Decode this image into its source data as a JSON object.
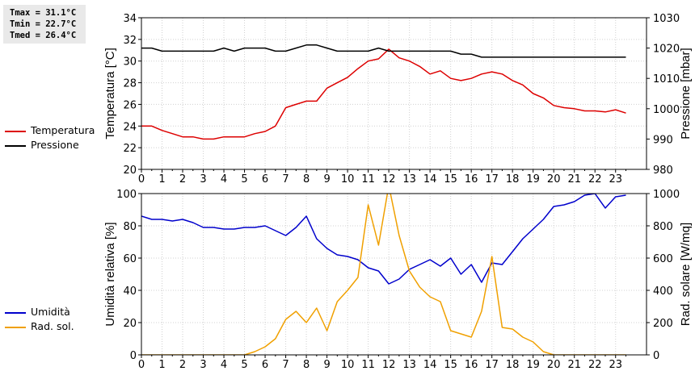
{
  "stats": {
    "tmax": "Tmax = 31.1°C",
    "tmin": "Tmin = 22.7°C",
    "tmed": "Tmed = 26.4°C"
  },
  "chart_data": [
    {
      "type": "line",
      "x_ticks": [
        "0",
        "1",
        "2",
        "3",
        "4",
        "5",
        "6",
        "7",
        "8",
        "9",
        "10",
        "11",
        "12",
        "13",
        "14",
        "15",
        "16",
        "17",
        "18",
        "19",
        "20",
        "21",
        "22",
        "23"
      ],
      "xlim": [
        0,
        24.5
      ],
      "y_left": {
        "label": "Temperatura [°C]",
        "lim": [
          20,
          34
        ],
        "ticks": [
          "20",
          "22",
          "24",
          "26",
          "28",
          "30",
          "32",
          "34"
        ]
      },
      "y_right": {
        "label": "Pressione [mbar]",
        "lim": [
          980,
          1030
        ],
        "ticks": [
          "980",
          "990",
          "1000",
          "1010",
          "1020",
          "1030"
        ]
      },
      "grid": true,
      "legend_position": "left",
      "series": [
        {
          "name": "Temperatura",
          "axis": "left",
          "color": "#dd0000",
          "x": [
            0,
            0.5,
            1,
            1.5,
            2,
            2.5,
            3,
            3.5,
            4,
            4.5,
            5,
            5.5,
            6,
            6.5,
            7,
            7.5,
            8,
            8.5,
            9,
            9.5,
            10,
            10.5,
            11,
            11.5,
            12,
            12.5,
            13,
            13.5,
            14,
            14.5,
            15,
            15.5,
            16,
            16.5,
            17,
            17.5,
            18,
            18.5,
            19,
            19.5,
            20,
            20.5,
            21,
            21.5,
            22,
            22.5,
            23,
            23.5
          ],
          "y": [
            24.0,
            24.0,
            23.6,
            23.3,
            23.0,
            23.0,
            22.8,
            22.8,
            23.0,
            23.0,
            23.0,
            23.3,
            23.5,
            24.0,
            25.7,
            26.0,
            26.3,
            26.3,
            27.5,
            28.0,
            28.5,
            29.3,
            30.0,
            30.2,
            31.1,
            30.3,
            30.0,
            29.5,
            28.8,
            29.1,
            28.4,
            28.2,
            28.4,
            28.8,
            29.0,
            28.8,
            28.2,
            27.8,
            27.0,
            26.6,
            25.9,
            25.7,
            25.6,
            25.4,
            25.4,
            25.3,
            25.5,
            25.2
          ]
        },
        {
          "name": "Pressione",
          "axis": "right",
          "color": "#000000",
          "x": [
            0,
            0.5,
            1,
            1.5,
            2,
            2.5,
            3,
            3.5,
            4,
            4.5,
            5,
            5.5,
            6,
            6.5,
            7,
            7.5,
            8,
            8.5,
            9,
            9.5,
            10,
            10.5,
            11,
            11.5,
            12,
            12.5,
            13,
            13.5,
            14,
            14.5,
            15,
            15.5,
            16,
            16.5,
            17,
            17.5,
            18,
            18.5,
            19,
            19.5,
            20,
            20.5,
            21,
            21.5,
            22,
            22.5,
            23,
            23.5
          ],
          "y": [
            1020,
            1020,
            1019,
            1019,
            1019,
            1019,
            1019,
            1019,
            1020,
            1019,
            1020,
            1020,
            1020,
            1019,
            1019,
            1020,
            1021,
            1021,
            1020,
            1019,
            1019,
            1019,
            1019,
            1020,
            1019,
            1019,
            1019,
            1019,
            1019,
            1019,
            1019,
            1018,
            1018,
            1017,
            1017,
            1017,
            1017,
            1017,
            1017,
            1017,
            1017,
            1017,
            1017,
            1017,
            1017,
            1017,
            1017,
            1017
          ]
        }
      ]
    },
    {
      "type": "line",
      "x_ticks": [
        "0",
        "1",
        "2",
        "3",
        "4",
        "5",
        "6",
        "7",
        "8",
        "9",
        "10",
        "11",
        "12",
        "13",
        "14",
        "15",
        "16",
        "17",
        "18",
        "19",
        "20",
        "21",
        "22",
        "23"
      ],
      "xlim": [
        0,
        24.5
      ],
      "y_left": {
        "label": "Umidità relativa [%]",
        "lim": [
          0,
          100
        ],
        "ticks": [
          "0",
          "20",
          "40",
          "60",
          "80",
          "100"
        ]
      },
      "y_right": {
        "label": "Rad. solare [W/mq]",
        "lim": [
          0,
          1000
        ],
        "ticks": [
          "0",
          "200",
          "400",
          "600",
          "800",
          "1000"
        ]
      },
      "grid": true,
      "legend_position": "left",
      "series": [
        {
          "name": "Umidità",
          "axis": "left",
          "color": "#0000cc",
          "x": [
            0,
            0.5,
            1,
            1.5,
            2,
            2.5,
            3,
            3.5,
            4,
            4.5,
            5,
            5.5,
            6,
            6.5,
            7,
            7.5,
            8,
            8.5,
            9,
            9.5,
            10,
            10.5,
            11,
            11.5,
            12,
            12.5,
            13,
            13.5,
            14,
            14.5,
            15,
            15.5,
            16,
            16.5,
            17,
            17.5,
            18,
            18.5,
            19,
            19.5,
            20,
            20.5,
            21,
            21.5,
            22,
            22.5,
            23,
            23.5
          ],
          "y": [
            86,
            84,
            84,
            83,
            84,
            82,
            79,
            79,
            78,
            78,
            79,
            79,
            80,
            77,
            74,
            79,
            86,
            72,
            66,
            62,
            61,
            59,
            54,
            52,
            44,
            47,
            53,
            56,
            59,
            55,
            60,
            50,
            56,
            45,
            57,
            56,
            64,
            72,
            78,
            84,
            92,
            93,
            95,
            99,
            100,
            91,
            98,
            99
          ]
        },
        {
          "name": "Rad. sol.",
          "axis": "right",
          "color": "#f0a000",
          "x": [
            0,
            0.5,
            1,
            1.5,
            2,
            2.5,
            3,
            3.5,
            4,
            4.5,
            5,
            5.5,
            6,
            6.5,
            7,
            7.5,
            8,
            8.5,
            9,
            9.5,
            10,
            10.5,
            11,
            11.5,
            12,
            12.5,
            13,
            13.5,
            14,
            14.5,
            15,
            15.5,
            16,
            16.5,
            17,
            17.5,
            18,
            18.5,
            19,
            19.5,
            20,
            20.5,
            21,
            21.5,
            22,
            22.5,
            23,
            23.5
          ],
          "y": [
            0,
            0,
            0,
            0,
            0,
            0,
            0,
            0,
            0,
            0,
            0,
            20,
            50,
            100,
            220,
            270,
            200,
            290,
            150,
            330,
            400,
            480,
            930,
            680,
            1050,
            740,
            520,
            420,
            360,
            330,
            150,
            130,
            110,
            270,
            610,
            170,
            160,
            110,
            80,
            20,
            0,
            0,
            0,
            0,
            0,
            0,
            0,
            0
          ]
        }
      ]
    }
  ]
}
